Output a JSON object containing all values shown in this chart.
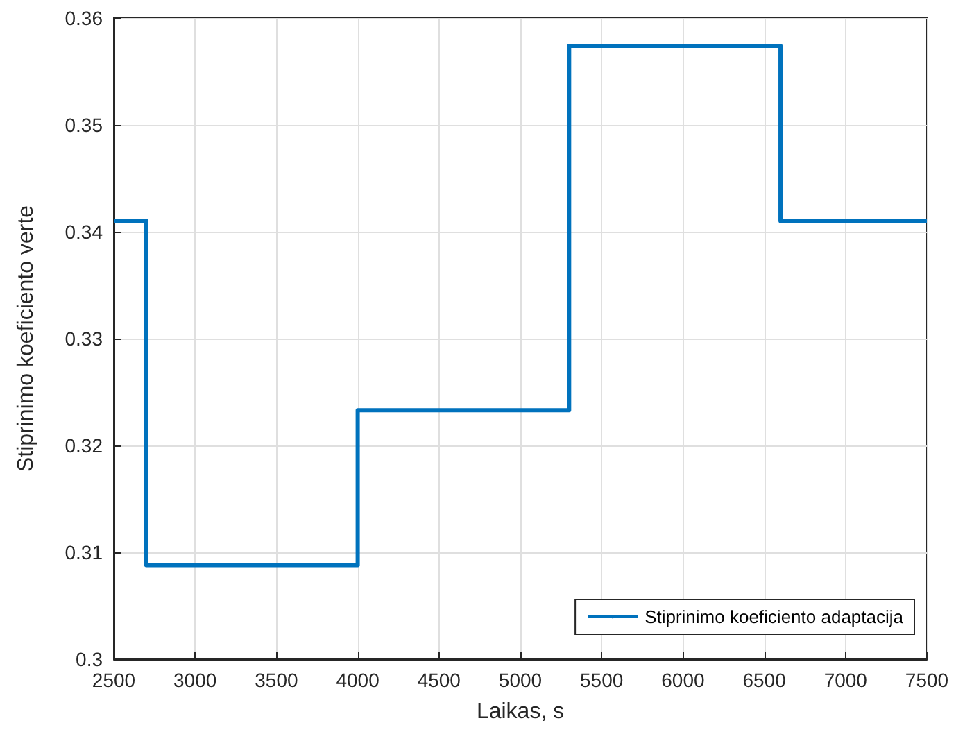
{
  "chart_data": {
    "type": "step",
    "xlabel": "Laikas, s",
    "ylabel": "Stiprinimo koeficiento verte",
    "x": [
      2500,
      2700,
      4000,
      5300,
      6600,
      7500
    ],
    "series": [
      {
        "name": "Stiprinimo koeficiento adaptacija",
        "color": "#0072bd",
        "values": [
          0.341,
          0.3088,
          0.3233,
          0.3574,
          0.341,
          0.341
        ]
      }
    ],
    "xlim": [
      2500,
      7500
    ],
    "xticks": [
      2500,
      3000,
      3500,
      4000,
      4500,
      5000,
      5500,
      6000,
      6500,
      7000,
      7500
    ],
    "ylim": [
      0.3,
      0.36
    ],
    "yticks": [
      0.3,
      0.31,
      0.32,
      0.33,
      0.34,
      0.35,
      0.36
    ],
    "grid": true,
    "legend": "bottom right",
    "marker": "none",
    "line_style": "solid"
  }
}
